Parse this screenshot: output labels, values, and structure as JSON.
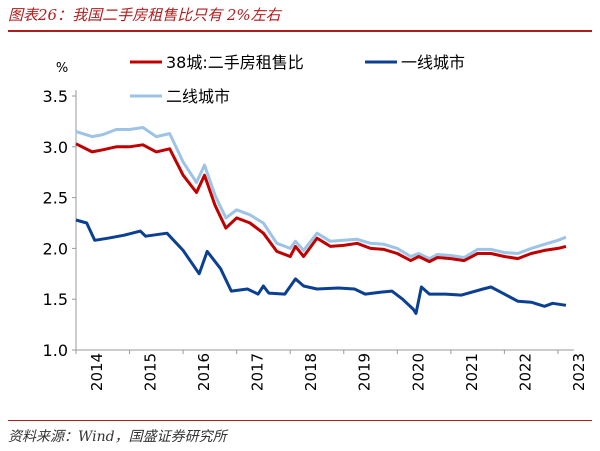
{
  "title": "图表26：我国二手房租售比只有 2%左右",
  "source": "资料来源：Wind，国盛证券研究所",
  "chart_data": {
    "type": "line",
    "ylabel": "%",
    "ylim": [
      1.0,
      3.5
    ],
    "yticks": [
      "1.0",
      "1.5",
      "2.0",
      "2.5",
      "3.0",
      "3.5"
    ],
    "xlim": [
      2014,
      2023.3
    ],
    "xticks": [
      "2014",
      "2015",
      "2016",
      "2017",
      "2018",
      "2019",
      "2020",
      "2021",
      "2022",
      "2023"
    ],
    "grid": false,
    "legend_placement": "top",
    "series": [
      {
        "name": "38城:二手房租售比",
        "color": "#c00000",
        "x": [
          2014,
          2014.3,
          2014.5,
          2014.75,
          2015,
          2015.25,
          2015.5,
          2015.75,
          2016,
          2016.25,
          2016.4,
          2016.6,
          2016.8,
          2017,
          2017.25,
          2017.5,
          2017.75,
          2018,
          2018.1,
          2018.25,
          2018.5,
          2018.75,
          2019,
          2019.25,
          2019.5,
          2019.75,
          2020,
          2020.25,
          2020.4,
          2020.6,
          2020.75,
          2021,
          2021.25,
          2021.5,
          2021.75,
          2022,
          2022.25,
          2022.5,
          2022.75,
          2023,
          2023.15
        ],
        "y": [
          3.03,
          2.95,
          2.97,
          3.0,
          3.0,
          3.02,
          2.95,
          2.98,
          2.72,
          2.55,
          2.72,
          2.42,
          2.2,
          2.3,
          2.25,
          2.15,
          1.97,
          1.92,
          2.02,
          1.92,
          2.1,
          2.02,
          2.03,
          2.05,
          2.0,
          1.99,
          1.95,
          1.88,
          1.92,
          1.87,
          1.91,
          1.9,
          1.88,
          1.95,
          1.95,
          1.92,
          1.9,
          1.95,
          1.98,
          2.0,
          2.02
        ]
      },
      {
        "name": "一线城市",
        "color": "#0b3f91",
        "x": [
          2014,
          2014.2,
          2014.35,
          2014.6,
          2014.9,
          2015.2,
          2015.3,
          2015.7,
          2016,
          2016.3,
          2016.45,
          2016.7,
          2016.9,
          2017.2,
          2017.4,
          2017.5,
          2017.6,
          2017.9,
          2018.1,
          2018.25,
          2018.5,
          2018.9,
          2019.2,
          2019.4,
          2019.7,
          2019.9,
          2020.1,
          2020.3,
          2020.35,
          2020.45,
          2020.6,
          2020.9,
          2021.2,
          2021.6,
          2021.75,
          2022,
          2022.25,
          2022.5,
          2022.75,
          2022.9,
          2023.15
        ],
        "y": [
          2.28,
          2.25,
          2.08,
          2.1,
          2.13,
          2.17,
          2.12,
          2.15,
          1.98,
          1.75,
          1.97,
          1.8,
          1.58,
          1.6,
          1.55,
          1.63,
          1.56,
          1.55,
          1.7,
          1.63,
          1.6,
          1.61,
          1.6,
          1.55,
          1.57,
          1.58,
          1.5,
          1.4,
          1.36,
          1.62,
          1.55,
          1.55,
          1.54,
          1.6,
          1.62,
          1.55,
          1.48,
          1.47,
          1.43,
          1.46,
          1.44
        ]
      },
      {
        "name": "二线城市",
        "color": "#9dc3e6",
        "x": [
          2014,
          2014.3,
          2014.5,
          2014.75,
          2015,
          2015.25,
          2015.5,
          2015.75,
          2016,
          2016.25,
          2016.4,
          2016.6,
          2016.8,
          2017,
          2017.25,
          2017.5,
          2017.75,
          2018,
          2018.1,
          2018.25,
          2018.5,
          2018.75,
          2019,
          2019.25,
          2019.5,
          2019.75,
          2020,
          2020.25,
          2020.4,
          2020.6,
          2020.75,
          2021,
          2021.25,
          2021.5,
          2021.75,
          2022,
          2022.25,
          2022.5,
          2022.75,
          2023,
          2023.15
        ],
        "y": [
          3.15,
          3.1,
          3.12,
          3.17,
          3.17,
          3.19,
          3.1,
          3.13,
          2.85,
          2.65,
          2.82,
          2.52,
          2.3,
          2.38,
          2.33,
          2.25,
          2.05,
          2.0,
          2.07,
          1.98,
          2.15,
          2.07,
          2.08,
          2.09,
          2.05,
          2.04,
          2.0,
          1.92,
          1.95,
          1.9,
          1.94,
          1.93,
          1.91,
          1.99,
          1.99,
          1.96,
          1.95,
          2.0,
          2.04,
          2.08,
          2.11
        ]
      }
    ]
  }
}
